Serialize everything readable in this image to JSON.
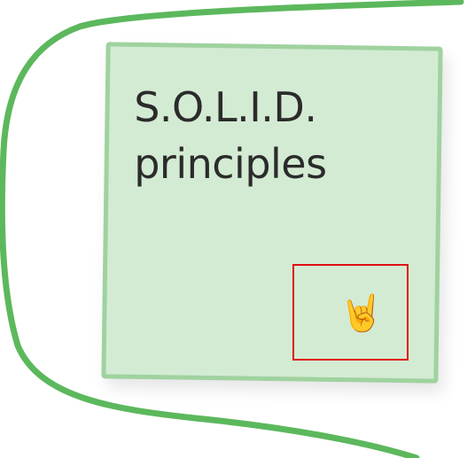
{
  "sticky_note": {
    "title_line_1": "S.O.L.I.D.",
    "title_line_2": "principles",
    "background_color": "#d3ebd3",
    "border_color": "#9fd29f"
  },
  "frame": {
    "stroke_color": "#5cb85c"
  },
  "reaction": {
    "emoji": "🤘",
    "icon_name": "sign-of-the-horns-icon",
    "highlight_color": "#e01010"
  }
}
